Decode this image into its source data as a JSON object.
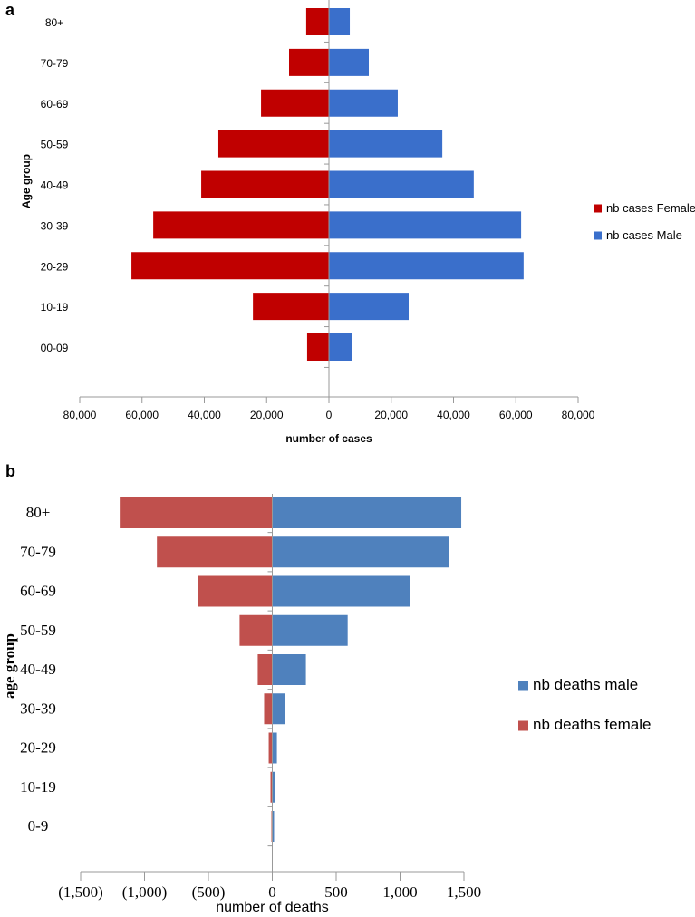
{
  "chart_data": [
    {
      "panel": "a",
      "type": "bar",
      "orientation": "horizontal-population-pyramid",
      "categories": [
        "80+",
        "70-79",
        "60-69",
        "50-59",
        "40-49",
        "30-39",
        "20-29",
        "10-19",
        "00-09"
      ],
      "series": [
        {
          "name": "nb cases Female",
          "color": "#C00000",
          "side": "left",
          "values": [
            7300,
            12800,
            21800,
            35500,
            41000,
            56400,
            63400,
            24400,
            7000
          ]
        },
        {
          "name": "nb cases Male",
          "color": "#3A6FCB",
          "side": "right",
          "values": [
            6700,
            12800,
            22100,
            36400,
            46500,
            61700,
            62500,
            25600,
            7300
          ]
        }
      ],
      "xlabel": "number of cases",
      "ylabel": "Age group",
      "xlim": [
        -80000,
        80000
      ],
      "xticks": [
        -80000,
        -60000,
        -40000,
        -20000,
        0,
        20000,
        40000,
        60000,
        80000
      ],
      "xtick_labels": [
        "80,000",
        "60,000",
        "40,000",
        "20,000",
        "0",
        "20,000",
        "40,000",
        "60,000",
        "80,000"
      ],
      "legend": "right",
      "grid": false
    },
    {
      "panel": "b",
      "type": "bar",
      "orientation": "horizontal-population-pyramid",
      "categories": [
        "80+",
        "70-79",
        "60-69",
        "50-59",
        "40-49",
        "30-39",
        "20-29",
        "10-19",
        "0-9"
      ],
      "series": [
        {
          "name": "nb deaths male",
          "color": "#4F81BD",
          "side": "right",
          "values": [
            1479,
            1386,
            1080,
            590,
            263,
            100,
            36,
            21,
            14
          ]
        },
        {
          "name": "nb deaths female",
          "color": "#C0504D",
          "side": "left",
          "values": [
            1194,
            903,
            583,
            256,
            114,
            64,
            28,
            14,
            7
          ]
        }
      ],
      "xlabel": "number of deaths",
      "ylabel": "age group",
      "xlim": [
        -1500,
        1500
      ],
      "xticks": [
        -1500,
        -1000,
        -500,
        0,
        500,
        1000,
        1500
      ],
      "xtick_labels": [
        "(1,500)",
        "(1,000)",
        "(500)",
        "0",
        "500",
        "1,000",
        "1,500"
      ],
      "legend": "right",
      "grid": false
    }
  ]
}
